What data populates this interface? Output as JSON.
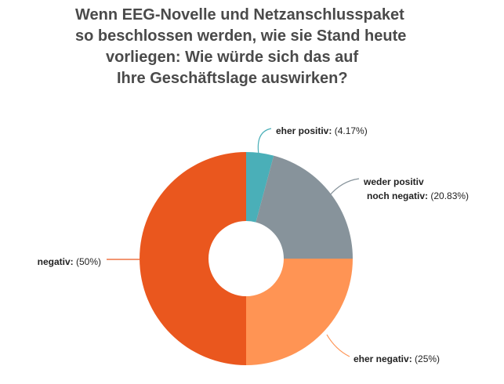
{
  "chart_data": {
    "type": "pie",
    "title_lines": [
      "Wenn EEG-Novelle und Netzanschlusspaket",
      "so beschlossen werden, wie sie Stand heute",
      "vorliegen: Wie würde sich das auf",
      "Ihre Geschäftslage auswirken?"
    ],
    "slices": [
      {
        "name_lines": [
          "eher positiv:"
        ],
        "value_text": "(4.17%)",
        "value": 4.17,
        "color": "#4aafb8"
      },
      {
        "name_lines": [
          "weder positiv",
          "noch negativ:"
        ],
        "value_text": "(20.83%)",
        "value": 20.83,
        "color": "#87939b"
      },
      {
        "name_lines": [
          "eher negativ:"
        ],
        "value_text": "(25%)",
        "value": 25,
        "color": "#ff9454"
      },
      {
        "name_lines": [
          "negativ:"
        ],
        "value_text": "(50%)",
        "value": 50,
        "color": "#ea571e"
      }
    ],
    "donut": true,
    "start_angle": "12 o'clock",
    "direction": "clockwise",
    "legend": "none"
  }
}
